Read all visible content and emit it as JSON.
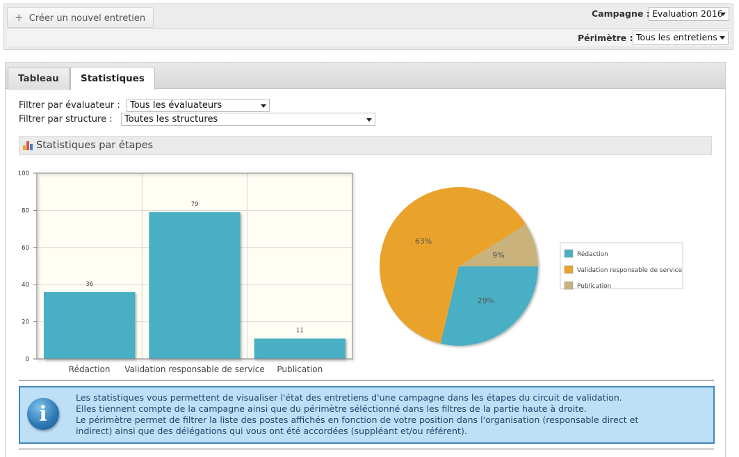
{
  "header": {
    "new_interview_label": "Créer un nouvel entretien",
    "campaign_label": "Campagne :",
    "campaign_value": "Evaluation 2016",
    "scope_label": "Périmètre :",
    "scope_value": "Tous les entretiens"
  },
  "tabs": [
    {
      "label": "Tableau"
    },
    {
      "label": "Statistiques"
    }
  ],
  "filters": {
    "evaluator_label": "Filtrer par évaluateur :",
    "evaluator_value": "Tous les évaluateurs",
    "structure_label": "Filtrer par structure :",
    "structure_value": "Toutes les structures"
  },
  "section": {
    "title": "Statistiques par étapes"
  },
  "colors": {
    "teal": "#4aafc4",
    "orange": "#e9a32a",
    "tan": "#c9b27c",
    "plot_bg": "#fffdf4"
  },
  "chart_data": [
    {
      "type": "bar",
      "categories": [
        "Rédaction",
        "Validation responsable de service",
        "Publication"
      ],
      "values": [
        36,
        79,
        11
      ],
      "ylim": [
        0,
        100
      ],
      "yticks": [
        0,
        20,
        40,
        60,
        80,
        100
      ],
      "grid": true
    },
    {
      "type": "pie",
      "labels": [
        "Rédaction",
        "Validation responsable de service",
        "Publication"
      ],
      "values": [
        29,
        63,
        9
      ],
      "value_labels": [
        "29%",
        "63%",
        "9%"
      ],
      "legend": "right"
    }
  ],
  "info": {
    "lines": [
      "Les statistiques vous permettent de visualiser l'état des entretiens d'une campagne dans les étapes du circuit de validation.",
      "Elles tiennent compte de la campagne ainsi que du périmètre séléctionné dans les filtres de la partie haute à droite.",
      "Le périmètre permet de filtrer la liste des postes affichés en fonction de votre position dans l'organisation (responsable direct et",
      "indirect) ainsi que des délégations qui vous ont été accordées (suppléant et/ou référent)."
    ]
  }
}
